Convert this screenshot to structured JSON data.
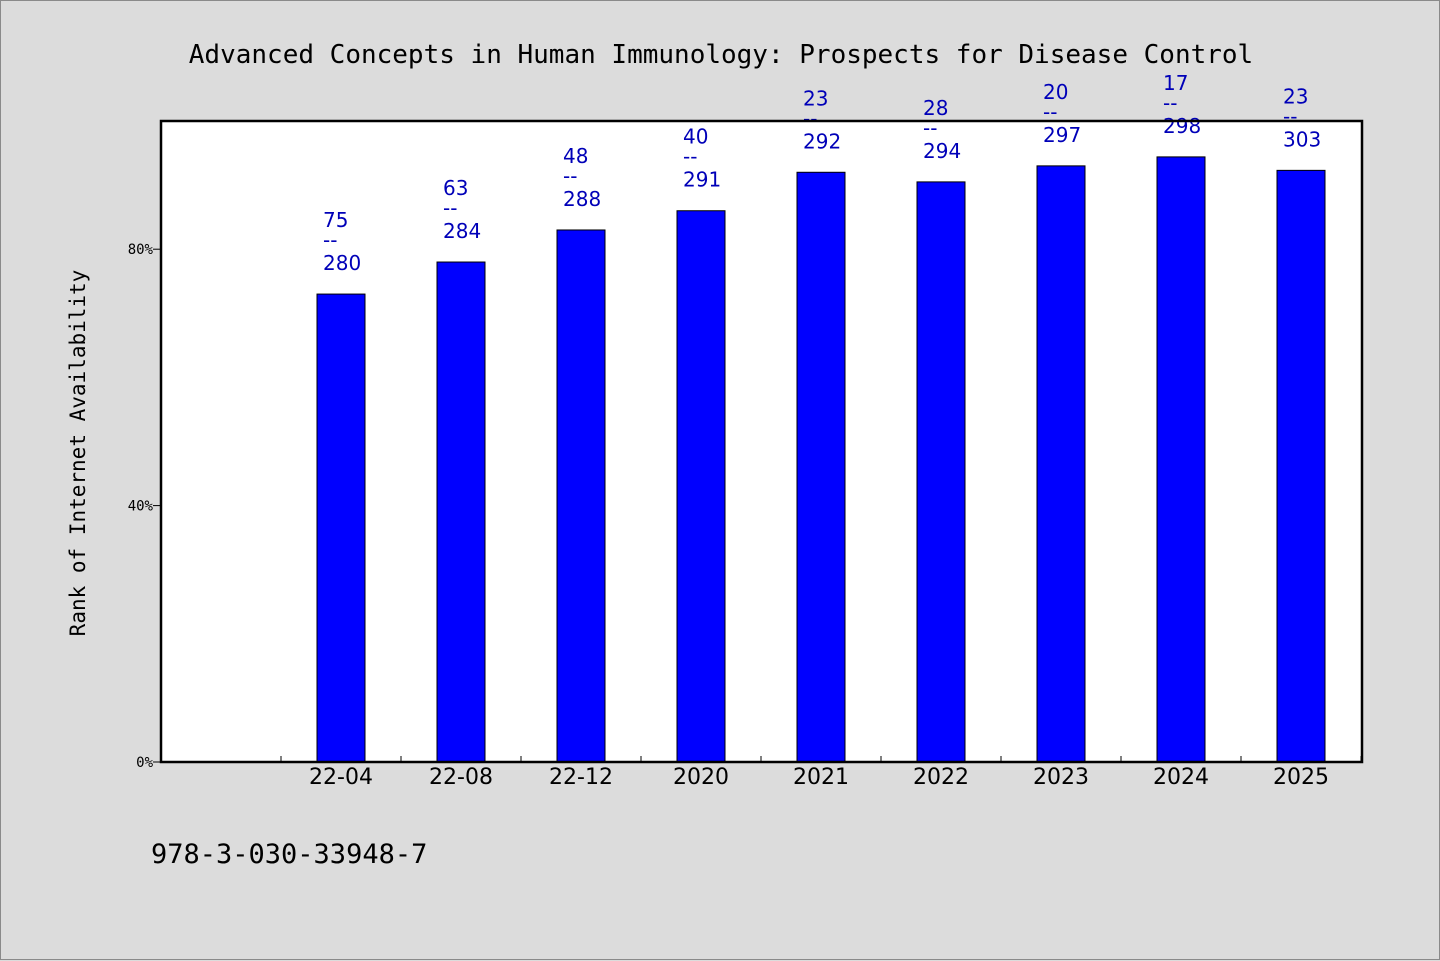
{
  "chart_data": {
    "type": "bar",
    "title": "Advanced Concepts in Human Immunology: Prospects for Disease Control",
    "ylabel": "Rank of Internet Availability",
    "xlabel": "",
    "categories": [
      "22-04",
      "22-08",
      "22-12",
      "2020",
      "2021",
      "2022",
      "2023",
      "2024",
      "2025"
    ],
    "values": [
      73,
      78,
      83,
      86,
      92,
      90.5,
      93,
      94.4,
      92.3
    ],
    "ylim": [
      0,
      100
    ],
    "yticks": [
      0,
      40,
      80
    ],
    "ytick_labels": [
      "0%",
      "40%",
      "80%"
    ],
    "data_labels": [
      {
        "top": "75",
        "sep": "--",
        "bottom": "280"
      },
      {
        "top": "63",
        "sep": "--",
        "bottom": "284"
      },
      {
        "top": "48",
        "sep": "--",
        "bottom": "288"
      },
      {
        "top": "40",
        "sep": "--",
        "bottom": "291"
      },
      {
        "top": "23",
        "sep": "--",
        "bottom": "292"
      },
      {
        "top": "28",
        "sep": "--",
        "bottom": "294"
      },
      {
        "top": "20",
        "sep": "--",
        "bottom": "297"
      },
      {
        "top": "17",
        "sep": "--",
        "bottom": "298"
      },
      {
        "top": "23",
        "sep": "--",
        "bottom": "303"
      }
    ],
    "bar_color": "#0000ff",
    "label_color": "#0000b8",
    "grid": false,
    "legend": "none"
  },
  "footer": {
    "isbn": "978-3-030-33948-7"
  },
  "colors": {
    "background": "#dcdcdc",
    "plot_background": "#ffffff"
  }
}
